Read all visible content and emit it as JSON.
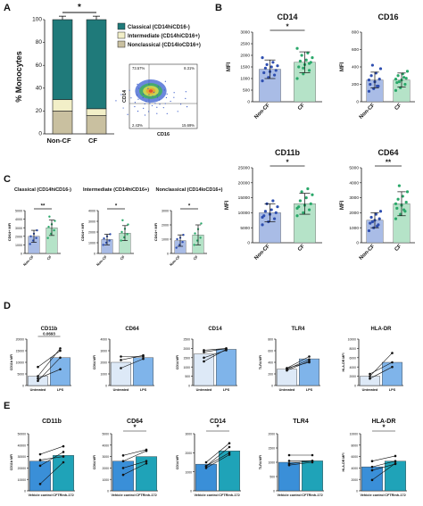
{
  "panel_labels": [
    "A",
    "B",
    "C",
    "D",
    "E"
  ],
  "colors": {
    "classical": "#1f7a7a",
    "intermediate": "#f2efc8",
    "nonclassical": "#c9c0a0",
    "noncf_fill": "#a9bce6",
    "noncf_point": "#2f4fb0",
    "cf_fill": "#b5e3c8",
    "cf_point": "#2aa86a",
    "d_untreated": "#dde9f7",
    "d_lps": "#7fb4ea",
    "e_vehicle": "#3a8fd8",
    "e_cftr": "#1fa3b8",
    "sig": "#000000"
  },
  "chart_data": [
    {
      "id": "A-stacked",
      "type": "bar",
      "stacked": true,
      "categories": [
        "Non-CF",
        "CF"
      ],
      "series": [
        {
          "name": "Nonclassical (CD14loCD16+)",
          "values": [
            20,
            16
          ]
        },
        {
          "name": "Intermediate (CD14hiCD16+)",
          "values": [
            10,
            6
          ]
        },
        {
          "name": "Classical (CD14hiCD16-)",
          "values": [
            70,
            78
          ]
        }
      ],
      "ylabel": "% Monocytes",
      "ylim": [
        0,
        100
      ],
      "yticks": [
        0,
        20,
        40,
        60,
        80,
        100
      ],
      "legend_title_lines": [
        "Classical (CD14hiCD16-)",
        "Intermediate (CD14hiCD16+)",
        "Nonclassical (CD14loCD16+)"
      ],
      "significance": "*"
    },
    {
      "id": "A-flow",
      "type": "scatter",
      "xlabel": "CD16",
      "ylabel": "CD14",
      "quadrant_labels": [
        "73.57%",
        "8.31%",
        "2.43%",
        "15.69%"
      ]
    },
    {
      "id": "B-CD14",
      "type": "bar",
      "title": "CD14",
      "ylabel": "MFI",
      "categories": [
        "Non-CF",
        "CF"
      ],
      "values": [
        1400,
        1700
      ],
      "error": [
        400,
        450
      ],
      "ylim": [
        0,
        3000
      ],
      "yticks": [
        0,
        500,
        1000,
        1500,
        2000,
        2500,
        3000
      ],
      "points": [
        [
          900,
          1050,
          1150,
          1250,
          1300,
          1350,
          1450,
          1500,
          1550,
          1600,
          1700,
          1900
        ],
        [
          1000,
          1200,
          1350,
          1500,
          1600,
          1700,
          1750,
          1800,
          1900,
          2000,
          2100,
          2300,
          1450,
          1650
        ]
      ],
      "significance": "*"
    },
    {
      "id": "B-CD16",
      "type": "bar",
      "title": "CD16",
      "ylabel": "MFI",
      "categories": [
        "Non-CF",
        "CF"
      ],
      "values": [
        250,
        250
      ],
      "error": [
        90,
        80
      ],
      "ylim": [
        0,
        800
      ],
      "yticks": [
        0,
        200,
        400,
        600,
        800
      ],
      "points": [
        [
          120,
          150,
          180,
          200,
          230,
          260,
          300,
          330,
          380,
          420,
          180,
          250
        ],
        [
          130,
          160,
          200,
          220,
          250,
          270,
          300,
          320,
          350,
          230,
          280,
          260
        ]
      ],
      "significance": ""
    },
    {
      "id": "B-CD11b",
      "type": "bar",
      "title": "CD11b",
      "ylabel": "MFI",
      "categories": [
        "Non-CF",
        "CF"
      ],
      "values": [
        10000,
        13000
      ],
      "error": [
        3000,
        3500
      ],
      "ylim": [
        0,
        25000
      ],
      "yticks": [
        0,
        5000,
        10000,
        15000,
        20000,
        25000
      ],
      "points": [
        [
          6000,
          7000,
          8000,
          9000,
          9500,
          10000,
          10500,
          11000,
          12000,
          13000,
          14000,
          8500
        ],
        [
          9000,
          10000,
          11000,
          12000,
          12500,
          13000,
          14000,
          15000,
          16000,
          17000,
          18000,
          11500
        ]
      ],
      "significance": "*"
    },
    {
      "id": "B-CD64",
      "type": "bar",
      "title": "CD64",
      "ylabel": "MFI",
      "categories": [
        "Non-CF",
        "CF"
      ],
      "values": [
        1500,
        2600
      ],
      "error": [
        500,
        800
      ],
      "ylim": [
        0,
        5000
      ],
      "yticks": [
        0,
        1000,
        2000,
        3000,
        4000,
        5000
      ],
      "points": [
        [
          800,
          1000,
          1200,
          1300,
          1500,
          1600,
          1700,
          1900,
          2100,
          1400,
          1100
        ],
        [
          1600,
          1900,
          2100,
          2300,
          2500,
          2700,
          2900,
          3100,
          3400,
          3800,
          2200,
          2600
        ]
      ],
      "significance": "**"
    },
    {
      "id": "C-Classical",
      "type": "bar",
      "title": "Classical (CD14hiCD16-)",
      "ylabel": "CD64+ MFI",
      "categories": [
        "Non-CF",
        "CF"
      ],
      "values": [
        2000,
        3000
      ],
      "error": [
        700,
        900
      ],
      "ylim": [
        0,
        5000
      ],
      "yticks": [
        0,
        1000,
        2000,
        3000,
        4000,
        5000
      ],
      "points": [
        [
          1100,
          1500,
          1800,
          2000,
          2300,
          2700
        ],
        [
          1800,
          2300,
          2700,
          3100,
          3400,
          3800,
          4300
        ]
      ],
      "significance": "**"
    },
    {
      "id": "C-Intermediate",
      "type": "bar",
      "title": "Intermediate (CD14hiCD16+)",
      "ylabel": "CD64+ MFI",
      "categories": [
        "Non-CF",
        "CF"
      ],
      "values": [
        1300,
        1900
      ],
      "error": [
        500,
        700
      ],
      "ylim": [
        0,
        4000
      ],
      "yticks": [
        0,
        1000,
        2000,
        3000,
        4000
      ],
      "points": [
        [
          800,
          1000,
          1200,
          1400,
          1600,
          1800
        ],
        [
          1200,
          1500,
          1800,
          2000,
          2300,
          2700,
          3100
        ]
      ],
      "significance": "*"
    },
    {
      "id": "C-Nonclassical",
      "type": "bar",
      "title": "Nonclassical (CD14loCD16+)",
      "ylabel": "CD64+ MFI",
      "categories": [
        "Non-CF",
        "CF"
      ],
      "values": [
        900,
        1300
      ],
      "error": [
        400,
        700
      ],
      "ylim": [
        0,
        3000
      ],
      "yticks": [
        0,
        1000,
        2000,
        3000
      ],
      "points": [
        [
          400,
          600,
          800,
          1000,
          1100,
          1300
        ],
        [
          600,
          900,
          1100,
          1400,
          1700,
          2100
        ]
      ],
      "significance": "*"
    },
    {
      "id": "D-CD11b",
      "type": "bar",
      "title": "CD11b",
      "ylabel": "CD11b MFI",
      "categories": [
        "Untreated",
        "LPS"
      ],
      "values": [
        4000,
        12000
      ],
      "ylim": [
        0,
        20000
      ],
      "yticks": [
        0,
        5000,
        10000,
        15000,
        20000
      ],
      "pairs": [
        [
          4000,
          16000
        ],
        [
          2000,
          12000
        ],
        [
          8000,
          15000
        ],
        [
          3000,
          7000
        ]
      ],
      "significance": "0.0693"
    },
    {
      "id": "D-CD64",
      "type": "bar",
      "title": "CD64",
      "ylabel": "CD64 MFI",
      "categories": [
        "Untreated",
        "LPS"
      ],
      "values": [
        2000,
        2400
      ],
      "ylim": [
        0,
        4000
      ],
      "yticks": [
        0,
        1000,
        2000,
        3000,
        4000
      ],
      "pairs": [
        [
          2200,
          2600
        ],
        [
          1500,
          2300
        ],
        [
          2500,
          2500
        ]
      ],
      "significance": ""
    },
    {
      "id": "D-CD14",
      "type": "bar",
      "title": "CD14",
      "ylabel": "CD14 MFI",
      "categories": [
        "Untreated",
        "LPS"
      ],
      "values": [
        1700,
        1950
      ],
      "ylim": [
        0,
        2500
      ],
      "yticks": [
        0,
        500,
        1000,
        1500,
        2000,
        2500
      ],
      "pairs": [
        [
          1800,
          2000
        ],
        [
          1500,
          1900
        ],
        [
          1900,
          2000
        ],
        [
          1300,
          1950
        ]
      ],
      "significance": ""
    },
    {
      "id": "D-TLR4",
      "type": "bar",
      "title": "TLR4",
      "ylabel": "TLR4 MFI",
      "categories": [
        "Untreated",
        "LPS"
      ],
      "values": [
        280,
        460
      ],
      "ylim": [
        0,
        800
      ],
      "yticks": [
        0,
        200,
        400,
        600,
        800
      ],
      "pairs": [
        [
          300,
          500
        ],
        [
          260,
          420
        ],
        [
          280,
          450
        ],
        [
          300,
          400
        ]
      ],
      "significance": ""
    },
    {
      "id": "D-HLA-DR",
      "type": "bar",
      "title": "HLA-DR",
      "ylabel": "HLA-DR MFI",
      "categories": [
        "Untreated",
        "LPS"
      ],
      "values": [
        2000,
        5000
      ],
      "ylim": [
        0,
        10000
      ],
      "yticks": [
        0,
        2000,
        4000,
        6000,
        8000,
        10000
      ],
      "pairs": [
        [
          2000,
          7000
        ],
        [
          1500,
          4000
        ],
        [
          2500,
          5000
        ]
      ],
      "significance": ""
    },
    {
      "id": "E-CD11b",
      "type": "bar",
      "title": "CD11b",
      "ylabel": "CD11b MFI",
      "categories": [
        "Vehicle control",
        "CFTRinh-172"
      ],
      "values": [
        26000,
        31000
      ],
      "ylim": [
        0,
        50000
      ],
      "yticks": [
        0,
        10000,
        20000,
        30000,
        40000,
        50000
      ],
      "pairs": [
        [
          32000,
          39000
        ],
        [
          27000,
          30000
        ],
        [
          22000,
          34000
        ],
        [
          6000,
          25000
        ]
      ],
      "significance": ""
    },
    {
      "id": "E-CD64",
      "type": "bar",
      "title": "CD64",
      "ylabel": "CD64 MFI",
      "categories": [
        "Vehicle control",
        "CFTRinh-172"
      ],
      "values": [
        2600,
        3000
      ],
      "ylim": [
        0,
        5000
      ],
      "yticks": [
        0,
        1000,
        2000,
        3000,
        4000,
        5000
      ],
      "pairs": [
        [
          3100,
          3600
        ],
        [
          2600,
          3500
        ],
        [
          2000,
          2600
        ],
        [
          1400,
          2400
        ]
      ],
      "significance": "*"
    },
    {
      "id": "E-CD14",
      "type": "bar",
      "title": "CD14",
      "ylabel": "CD14 MFI",
      "categories": [
        "Vehicle control",
        "CFTRinh-172"
      ],
      "values": [
        1400,
        2100
      ],
      "ylim": [
        0,
        3000
      ],
      "yticks": [
        0,
        1000,
        2000,
        3000
      ],
      "pairs": [
        [
          1500,
          2500
        ],
        [
          1300,
          2000
        ],
        [
          1200,
          1900
        ],
        [
          1300,
          2300
        ]
      ],
      "significance": "*"
    },
    {
      "id": "E-TLR4",
      "type": "bar",
      "title": "TLR4",
      "ylabel": "TLR4 MFI",
      "categories": [
        "Vehicle control",
        "CFTRinh-172"
      ],
      "values": [
        1000,
        1050
      ],
      "ylim": [
        0,
        2000
      ],
      "yticks": [
        0,
        500,
        1000,
        1500,
        2000
      ],
      "pairs": [
        [
          1250,
          1250
        ],
        [
          1050,
          1050
        ],
        [
          950,
          1050
        ],
        [
          900,
          1000
        ]
      ],
      "significance": ""
    },
    {
      "id": "E-HLA-DR",
      "type": "bar",
      "title": "HLA-DR",
      "ylabel": "HLA-DR MFI",
      "categories": [
        "Vehicle control",
        "CFTRinh-172"
      ],
      "values": [
        4200,
        5200
      ],
      "ylim": [
        0,
        10000
      ],
      "yticks": [
        0,
        2000,
        4000,
        6000,
        8000,
        10000
      ],
      "pairs": [
        [
          5200,
          6100
        ],
        [
          4200,
          5200
        ],
        [
          3600,
          4700
        ],
        [
          1900,
          4800
        ]
      ],
      "significance": "*"
    }
  ]
}
